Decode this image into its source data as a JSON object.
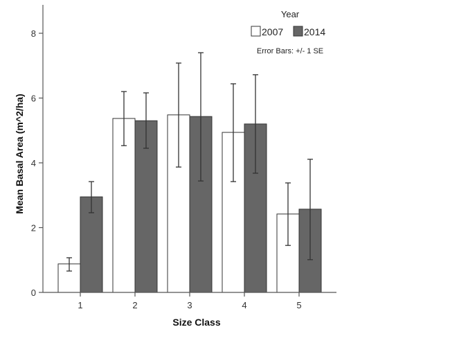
{
  "chart_data": {
    "type": "bar",
    "title": "",
    "xlabel": "Size Class",
    "ylabel": "Mean Basal Area (m^2/ha)",
    "categories": [
      "1",
      "2",
      "3",
      "4",
      "5"
    ],
    "yticks": [
      "0",
      "2",
      "4",
      "6",
      "8"
    ],
    "ylim": [
      0,
      8.8
    ],
    "grid": false,
    "legend": {
      "title": "Year",
      "position": "top-right",
      "note": "Error Bars: +/- 1 SE"
    },
    "series": [
      {
        "name": "2007",
        "color": "#ffffff",
        "values": [
          0.88,
          5.37,
          5.48,
          4.94,
          2.42
        ],
        "error_low": [
          0.66,
          4.53,
          3.87,
          3.42,
          1.45
        ],
        "error_high": [
          1.07,
          6.2,
          7.08,
          6.44,
          3.38
        ]
      },
      {
        "name": "2014",
        "color": "#666666",
        "values": [
          2.95,
          5.3,
          5.43,
          5.2,
          2.57
        ],
        "error_low": [
          2.46,
          4.45,
          3.44,
          3.68,
          1.01
        ],
        "error_high": [
          3.42,
          6.16,
          7.4,
          6.72,
          4.11
        ]
      }
    ]
  }
}
